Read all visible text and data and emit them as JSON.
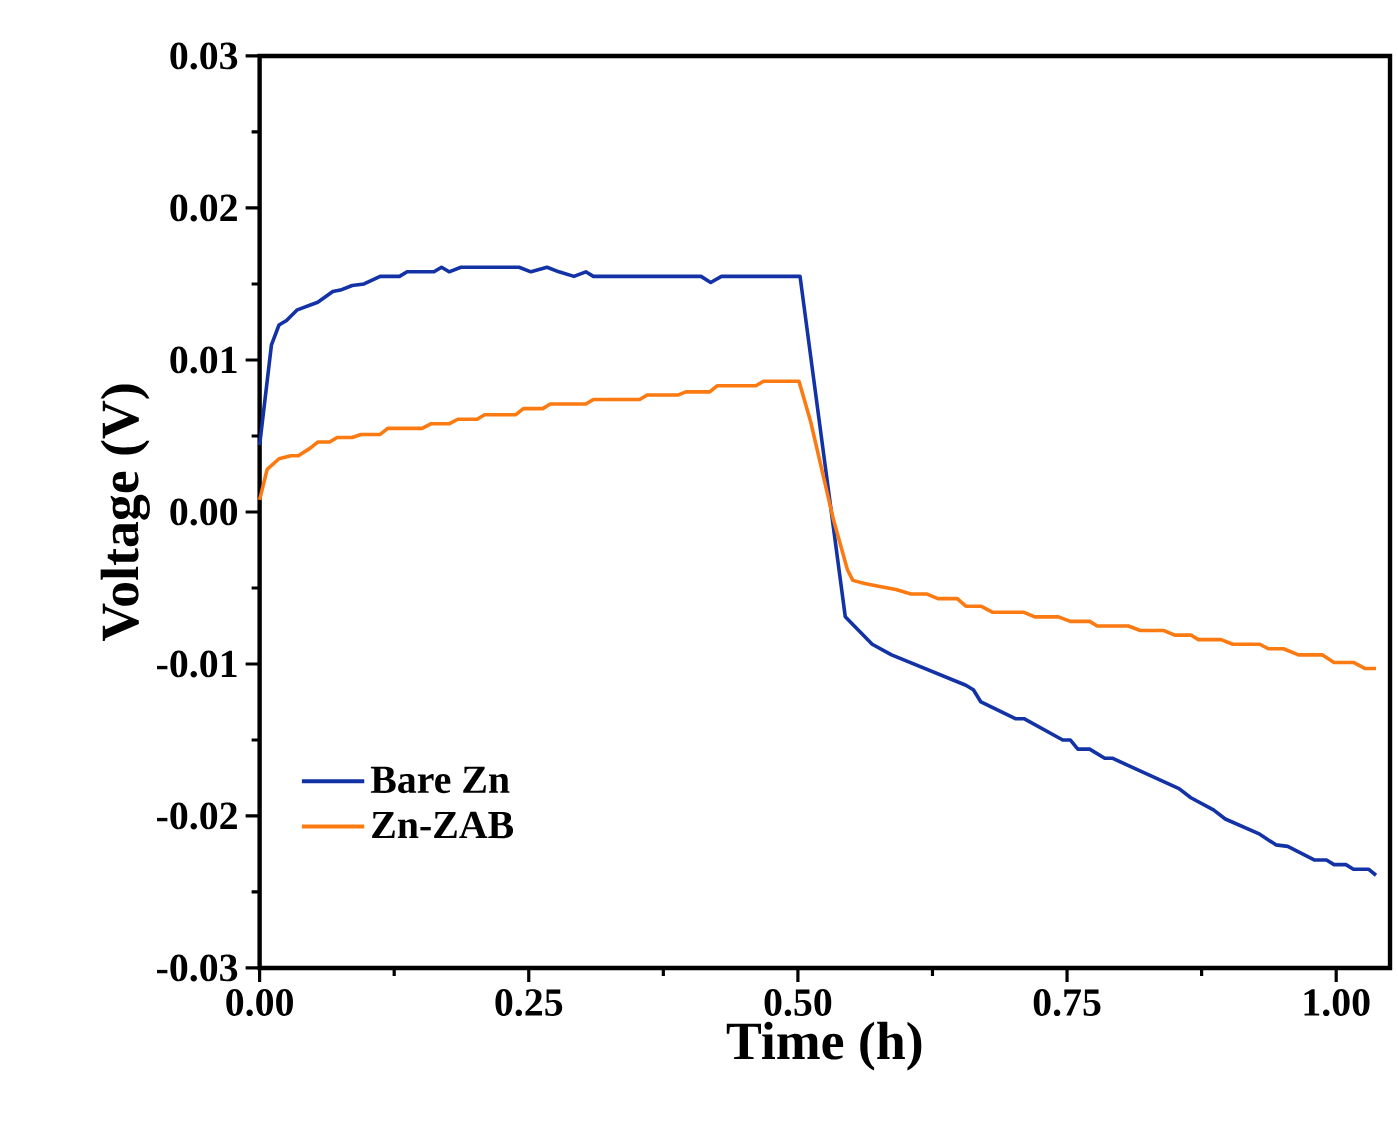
{
  "chart_data": {
    "type": "line",
    "xlabel": "Time (h)",
    "ylabel": "Voltage (V)",
    "xlim": [
      0,
      1.05
    ],
    "ylim": [
      -0.03,
      0.03
    ],
    "xticks": [
      {
        "value": 0,
        "label": "0.00"
      },
      0.25,
      {
        "value": 0.5,
        "label": "0.50"
      },
      0.75,
      {
        "value": 1,
        "label": "1.00"
      }
    ],
    "yticks": [
      {
        "value": -0.03,
        "label": "-0.03"
      },
      {
        "value": -0.02,
        "label": "-0.02"
      },
      {
        "value": -0.01,
        "label": "-0.01"
      },
      {
        "value": 0,
        "label": "0.00"
      },
      0.01,
      0.02,
      0.03
    ],
    "legend": "bottom left",
    "grid": false,
    "marker": "none",
    "line_style": "solid",
    "series": [
      {
        "name": "Bare Zn",
        "color": "#1232a6",
        "x": [
          0,
          0.011,
          0.018,
          0.025,
          0.035,
          0.054,
          0.068,
          0.075,
          0.086,
          0.097,
          0.112,
          0.13,
          0.137,
          0.162,
          0.169,
          0.176,
          0.187,
          0.241,
          0.252,
          0.267,
          0.278,
          0.292,
          0.303,
          0.31,
          0.41,
          0.419,
          0.429,
          0.502,
          0.544,
          0.569,
          0.587,
          0.656,
          0.663,
          0.67,
          0.702,
          0.71,
          0.746,
          0.753,
          0.76,
          0.771,
          0.785,
          0.792,
          0.854,
          0.865,
          0.886,
          0.897,
          0.929,
          0.944,
          0.955,
          0.98,
          0.991,
          0.998,
          1.009,
          1.016,
          1.03,
          1.037
        ],
        "values": [
          0.0044,
          0.011,
          0.0123,
          0.0126,
          0.0133,
          0.0138,
          0.0145,
          0.0146,
          0.0149,
          0.015,
          0.0155,
          0.0155,
          0.0158,
          0.0158,
          0.0161,
          0.0158,
          0.0161,
          0.0161,
          0.0158,
          0.0161,
          0.0158,
          0.0155,
          0.0158,
          0.0155,
          0.0155,
          0.0151,
          0.0155,
          0.0155,
          -0.0069,
          -0.0087,
          -0.0094,
          -0.0114,
          -0.0117,
          -0.0125,
          -0.0136,
          -0.0136,
          -0.015,
          -0.015,
          -0.0156,
          -0.0156,
          -0.0162,
          -0.0162,
          -0.0182,
          -0.0188,
          -0.0196,
          -0.0202,
          -0.0212,
          -0.0219,
          -0.022,
          -0.0229,
          -0.0229,
          -0.0232,
          -0.0232,
          -0.0235,
          -0.0235,
          -0.0239
        ]
      },
      {
        "name": "Zn-ZAB",
        "color": "#fb7a12",
        "x": [
          0,
          0.007,
          0.018,
          0.029,
          0.036,
          0.047,
          0.054,
          0.065,
          0.072,
          0.086,
          0.094,
          0.112,
          0.119,
          0.151,
          0.159,
          0.176,
          0.184,
          0.202,
          0.209,
          0.238,
          0.245,
          0.263,
          0.27,
          0.303,
          0.31,
          0.353,
          0.36,
          0.389,
          0.396,
          0.418,
          0.425,
          0.461,
          0.468,
          0.501,
          0.512,
          0.533,
          0.546,
          0.551,
          0.562,
          0.576,
          0.591,
          0.605,
          0.62,
          0.63,
          0.648,
          0.656,
          0.67,
          0.681,
          0.71,
          0.72,
          0.742,
          0.753,
          0.771,
          0.778,
          0.807,
          0.818,
          0.84,
          0.85,
          0.865,
          0.872,
          0.893,
          0.904,
          0.929,
          0.937,
          0.951,
          0.965,
          0.987,
          0.998,
          1.016,
          1.027,
          1.037
        ],
        "values": [
          0.0008,
          0.0028,
          0.0035,
          0.0037,
          0.0037,
          0.0042,
          0.0046,
          0.0046,
          0.0049,
          0.0049,
          0.0051,
          0.0051,
          0.0055,
          0.0055,
          0.0058,
          0.0058,
          0.0061,
          0.0061,
          0.0064,
          0.0064,
          0.0068,
          0.0068,
          0.0071,
          0.0071,
          0.0074,
          0.0074,
          0.0077,
          0.0077,
          0.0079,
          0.0079,
          0.0083,
          0.0083,
          0.0086,
          0.0086,
          0.0059,
          -0.0005,
          -0.0038,
          -0.0045,
          -0.0047,
          -0.0049,
          -0.0051,
          -0.0054,
          -0.0054,
          -0.0057,
          -0.0057,
          -0.0062,
          -0.0062,
          -0.0066,
          -0.0066,
          -0.0069,
          -0.0069,
          -0.0072,
          -0.0072,
          -0.0075,
          -0.0075,
          -0.0078,
          -0.0078,
          -0.0081,
          -0.0081,
          -0.0084,
          -0.0084,
          -0.0087,
          -0.0087,
          -0.009,
          -0.009,
          -0.0094,
          -0.0094,
          -0.0099,
          -0.0099,
          -0.0103,
          -0.0103
        ]
      }
    ]
  }
}
